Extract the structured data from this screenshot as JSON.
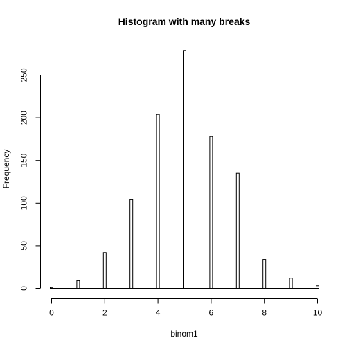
{
  "chart_data": {
    "type": "bar",
    "title": "Histogram with many breaks",
    "xlabel": "binom1",
    "ylabel": "Frequency",
    "x": [
      0,
      1,
      2,
      3,
      4,
      5,
      6,
      7,
      8,
      9,
      10
    ],
    "values": [
      1,
      9,
      42,
      104,
      204,
      279,
      178,
      135,
      34,
      12,
      3
    ],
    "xlim": [
      0,
      10
    ],
    "ylim": [
      0,
      279
    ],
    "xticks": [
      0,
      2,
      4,
      6,
      8,
      10
    ],
    "yticks": [
      0,
      50,
      100,
      150,
      200,
      250
    ],
    "grid": false,
    "bar_fill": "#ffffff",
    "bar_stroke": "#000000"
  }
}
